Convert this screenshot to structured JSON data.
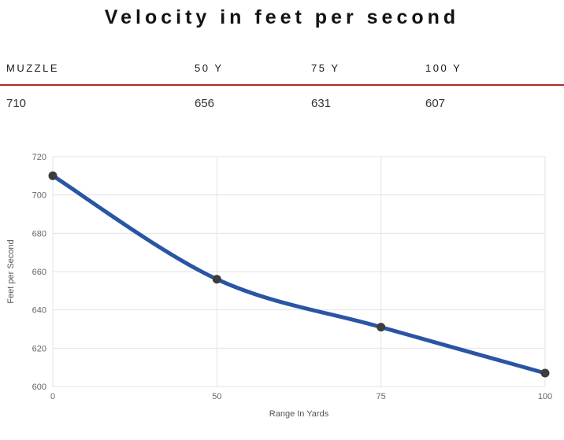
{
  "title": "Velocity in feet per second",
  "table": {
    "headers": [
      "MUZZLE",
      "50 Y",
      "75 Y",
      "100 Y"
    ],
    "values": [
      "710",
      "656",
      "631",
      "607"
    ]
  },
  "chart_data": {
    "type": "line",
    "categories": [
      "0",
      "50",
      "75",
      "100"
    ],
    "values": [
      710,
      656,
      631,
      607
    ],
    "xlabel": "Range In Yards",
    "ylabel": "Feet per Second",
    "ylim": [
      600,
      720
    ],
    "yticks": [
      600,
      620,
      640,
      660,
      680,
      700,
      720
    ],
    "x_axis_type": "category",
    "grid": true,
    "legend": "none",
    "colors": {
      "line": "#2a55a4",
      "point": "#3d3d3d",
      "grid": "#e3e3e3",
      "tick_text": "#666666"
    }
  },
  "colors": {
    "divider_red": "#b02b23",
    "title_text": "#131313",
    "header_text": "#161616",
    "value_text": "#333333"
  }
}
